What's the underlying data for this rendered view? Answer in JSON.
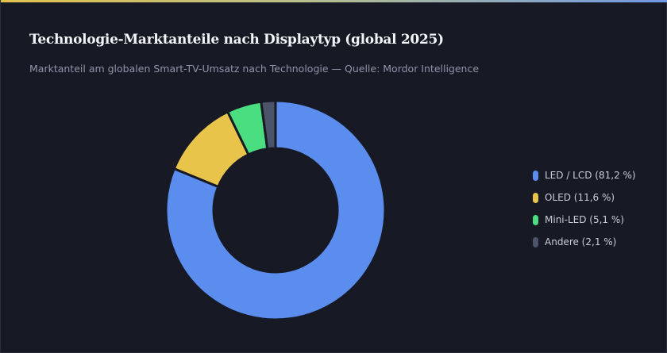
{
  "header": {
    "title": "Technologie-Marktanteile nach Displaytyp (global 2025)",
    "subtitle": "Marktanteil am globalen Smart-TV-Umsatz nach Technologie — Quelle: Mordor Intelligence"
  },
  "colors": {
    "background": "#171925",
    "accent_gradient": [
      "#e3c14d",
      "#6f98e6"
    ],
    "slice_border": "#171925"
  },
  "legend_position": "right",
  "chart_data": {
    "type": "pie",
    "variant": "donut",
    "title": "Technologie-Marktanteile nach Displaytyp (global 2025)",
    "subtitle": "Marktanteil am globalen Smart-TV-Umsatz nach Technologie — Quelle: Mordor Intelligence",
    "categories": [
      "LED / LCD",
      "OLED",
      "Mini-LED",
      "Andere"
    ],
    "values": [
      81.2,
      11.6,
      5.1,
      2.1
    ],
    "unit": "%",
    "legend_labels": [
      "LED / LCD (81,2 %)",
      "OLED (11,6 %)",
      "Mini-LED (5,1 %)",
      "Andere (2,1 %)"
    ],
    "colors": [
      "#5b8def",
      "#e8c54a",
      "#4ade80",
      "#4b5468"
    ]
  }
}
